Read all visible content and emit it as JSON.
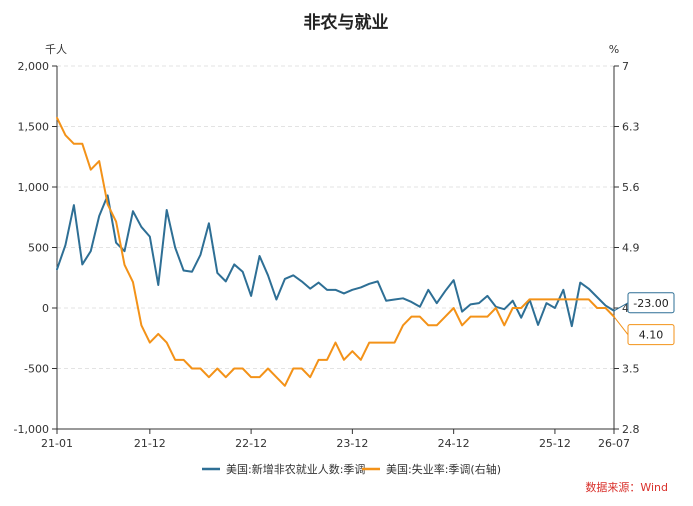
{
  "chart_data": {
    "type": "line",
    "title": "非农与就业",
    "left_unit": "千人",
    "right_unit": "%",
    "source": "数据来源：Wind",
    "x_tick_labels": [
      "21-01",
      "21-12",
      "22-12",
      "23-12",
      "24-12",
      "25-12",
      "26-07"
    ],
    "x_tick_index": [
      0,
      11,
      23,
      35,
      47,
      59,
      66
    ],
    "y_left": {
      "min": -1000,
      "max": 2000,
      "ticks": [
        -1000,
        -500,
        0,
        500,
        1000,
        1500,
        2000
      ],
      "tick_labels": [
        "-1,000",
        "-500",
        "0",
        "500",
        "1,000",
        "1,500",
        "2,000"
      ]
    },
    "y_right": {
      "min": 2.8,
      "max": 7,
      "ticks": [
        2.8,
        3.5,
        4.2,
        4.9,
        5.6,
        6.3,
        7
      ],
      "tick_labels": [
        "2.8",
        "3.5",
        "4.2",
        "4.9",
        "5.6",
        "6.3",
        "7"
      ]
    },
    "series": [
      {
        "name": "美国:新增非农就业人数:季调",
        "axis": "left",
        "color": "#2e6f95",
        "values": [
          320,
          520,
          850,
          360,
          470,
          760,
          930,
          540,
          470,
          800,
          670,
          590,
          190,
          810,
          500,
          310,
          300,
          440,
          700,
          290,
          220,
          360,
          300,
          100,
          430,
          270,
          70,
          240,
          270,
          220,
          160,
          210,
          150,
          150,
          120,
          150,
          170,
          200,
          220,
          60,
          70,
          80,
          50,
          10,
          150,
          40,
          140,
          230,
          -30,
          30,
          40,
          100,
          10,
          -10,
          60,
          -80,
          70,
          -140,
          40,
          0,
          150,
          -150,
          210,
          160,
          90,
          20,
          -23
        ]
      },
      {
        "name": "美国:失业率:季调(右轴)",
        "axis": "right",
        "color": "#f39218",
        "values": [
          6.4,
          6.2,
          6.1,
          6.1,
          5.8,
          5.9,
          5.4,
          5.2,
          4.7,
          4.5,
          4.0,
          3.8,
          3.9,
          3.8,
          3.6,
          3.6,
          3.5,
          3.5,
          3.4,
          3.5,
          3.4,
          3.5,
          3.5,
          3.4,
          3.4,
          3.5,
          3.4,
          3.3,
          3.5,
          3.5,
          3.4,
          3.6,
          3.6,
          3.8,
          3.6,
          3.7,
          3.6,
          3.8,
          3.8,
          3.8,
          3.8,
          4.0,
          4.1,
          4.1,
          4.0,
          4.0,
          4.1,
          4.2,
          4.0,
          4.1,
          4.1,
          4.1,
          4.2,
          4.0,
          4.2,
          4.2,
          4.3,
          4.3,
          4.3,
          4.3,
          4.3,
          4.3,
          4.3,
          4.3,
          4.2,
          4.2,
          4.1
        ]
      }
    ],
    "callouts": [
      {
        "series": 0,
        "text": "-23.00"
      },
      {
        "series": 1,
        "text": "4.10"
      }
    ],
    "grid": true,
    "legend_position": "bottom"
  }
}
